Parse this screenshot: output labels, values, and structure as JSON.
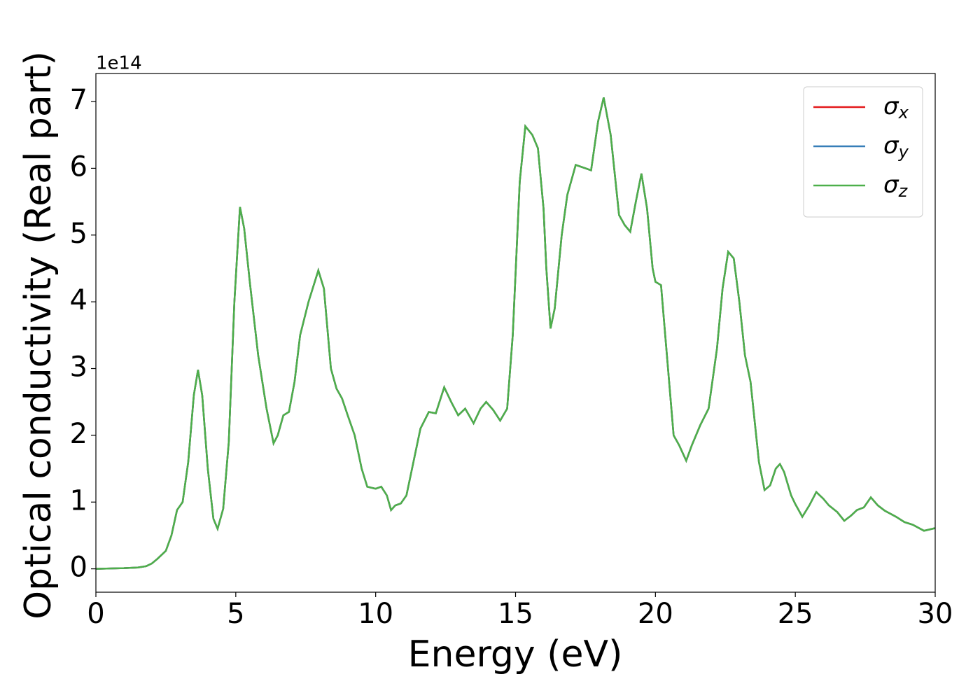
{
  "chart_data": {
    "type": "line",
    "xlabel": "Energy (eV)",
    "ylabel": "Optical conductivity (Real part)",
    "offset_label": "1e14",
    "x": [
      0,
      1,
      1.5,
      1.8,
      2.0,
      2.2,
      2.5,
      2.7,
      2.9,
      3.1,
      3.3,
      3.5,
      3.65,
      3.8,
      4.0,
      4.2,
      4.35,
      4.55,
      4.75,
      4.95,
      5.15,
      5.3,
      5.5,
      5.8,
      6.1,
      6.35,
      6.5,
      6.7,
      6.9,
      7.1,
      7.3,
      7.6,
      7.95,
      8.15,
      8.4,
      8.6,
      8.8,
      9.0,
      9.25,
      9.5,
      9.7,
      10.0,
      10.2,
      10.4,
      10.55,
      10.7,
      10.9,
      11.1,
      11.4,
      11.6,
      11.9,
      12.15,
      12.45,
      12.7,
      12.95,
      13.2,
      13.5,
      13.75,
      13.95,
      14.2,
      14.45,
      14.7,
      14.9,
      15.15,
      15.35,
      15.6,
      15.8,
      16.0,
      16.1,
      16.25,
      16.4,
      16.65,
      16.85,
      17.15,
      17.5,
      17.7,
      17.95,
      18.15,
      18.4,
      18.7,
      18.9,
      19.1,
      19.3,
      19.5,
      19.7,
      19.9,
      20.0,
      20.2,
      20.45,
      20.65,
      20.85,
      21.1,
      21.3,
      21.6,
      21.9,
      22.2,
      22.4,
      22.6,
      22.8,
      23.0,
      23.2,
      23.4,
      23.7,
      23.9,
      24.1,
      24.3,
      24.45,
      24.6,
      24.85,
      25.0,
      25.25,
      25.5,
      25.75,
      26.0,
      26.2,
      26.5,
      26.75,
      27.0,
      27.2,
      27.45,
      27.7,
      27.95,
      28.2,
      28.6,
      28.9,
      29.2,
      29.6,
      30
    ],
    "series": [
      {
        "name": "σx",
        "color": "#e41a1c",
        "values": [
          0,
          0.01,
          0.02,
          0.04,
          0.08,
          0.15,
          0.27,
          0.5,
          0.88,
          1.0,
          1.6,
          2.6,
          2.98,
          2.6,
          1.5,
          0.75,
          0.6,
          0.9,
          1.9,
          4.0,
          5.42,
          5.1,
          4.3,
          3.2,
          2.4,
          1.88,
          2.0,
          2.3,
          2.35,
          2.8,
          3.5,
          4.0,
          4.47,
          4.2,
          3.0,
          2.7,
          2.55,
          2.3,
          2.0,
          1.5,
          1.23,
          1.2,
          1.23,
          1.1,
          0.88,
          0.95,
          0.98,
          1.1,
          1.7,
          2.1,
          2.35,
          2.33,
          2.72,
          2.5,
          2.3,
          2.4,
          2.18,
          2.4,
          2.5,
          2.38,
          2.22,
          2.4,
          3.5,
          5.8,
          6.63,
          6.5,
          6.3,
          5.4,
          4.5,
          3.6,
          3.9,
          5.0,
          5.6,
          6.05,
          6.0,
          5.97,
          6.7,
          7.06,
          6.5,
          5.3,
          5.15,
          5.05,
          5.5,
          5.92,
          5.4,
          4.5,
          4.3,
          4.25,
          3.0,
          2.0,
          1.85,
          1.62,
          1.85,
          2.15,
          2.4,
          3.3,
          4.2,
          4.75,
          4.65,
          4.0,
          3.2,
          2.8,
          1.6,
          1.18,
          1.25,
          1.5,
          1.57,
          1.45,
          1.1,
          0.97,
          0.78,
          0.95,
          1.15,
          1.05,
          0.95,
          0.85,
          0.72,
          0.8,
          0.88,
          0.92,
          1.07,
          0.95,
          0.87,
          0.78,
          0.7,
          0.66,
          0.57,
          0.61
        ]
      },
      {
        "name": "σy",
        "color": "#377eb8",
        "values": [
          0,
          0.01,
          0.02,
          0.04,
          0.08,
          0.15,
          0.27,
          0.5,
          0.88,
          1.0,
          1.6,
          2.6,
          2.98,
          2.6,
          1.5,
          0.75,
          0.6,
          0.9,
          1.9,
          4.0,
          5.42,
          5.1,
          4.3,
          3.2,
          2.4,
          1.88,
          2.0,
          2.3,
          2.35,
          2.8,
          3.5,
          4.0,
          4.47,
          4.2,
          3.0,
          2.7,
          2.55,
          2.3,
          2.0,
          1.5,
          1.23,
          1.2,
          1.23,
          1.1,
          0.88,
          0.95,
          0.98,
          1.1,
          1.7,
          2.1,
          2.35,
          2.33,
          2.72,
          2.5,
          2.3,
          2.4,
          2.18,
          2.4,
          2.5,
          2.38,
          2.22,
          2.4,
          3.5,
          5.8,
          6.63,
          6.5,
          6.3,
          5.4,
          4.5,
          3.6,
          3.9,
          5.0,
          5.6,
          6.05,
          6.0,
          5.97,
          6.7,
          7.06,
          6.5,
          5.3,
          5.15,
          5.05,
          5.5,
          5.92,
          5.4,
          4.5,
          4.3,
          4.25,
          3.0,
          2.0,
          1.85,
          1.62,
          1.85,
          2.15,
          2.4,
          3.3,
          4.2,
          4.75,
          4.65,
          4.0,
          3.2,
          2.8,
          1.6,
          1.18,
          1.25,
          1.5,
          1.57,
          1.45,
          1.1,
          0.97,
          0.78,
          0.95,
          1.15,
          1.05,
          0.95,
          0.85,
          0.72,
          0.8,
          0.88,
          0.92,
          1.07,
          0.95,
          0.87,
          0.78,
          0.7,
          0.66,
          0.57,
          0.61
        ]
      },
      {
        "name": "σz",
        "color": "#4daf4a",
        "values": [
          0,
          0.01,
          0.02,
          0.04,
          0.08,
          0.15,
          0.27,
          0.5,
          0.88,
          1.0,
          1.6,
          2.6,
          2.98,
          2.6,
          1.5,
          0.75,
          0.6,
          0.9,
          1.9,
          4.0,
          5.42,
          5.1,
          4.3,
          3.2,
          2.4,
          1.88,
          2.0,
          2.3,
          2.35,
          2.8,
          3.5,
          4.0,
          4.47,
          4.2,
          3.0,
          2.7,
          2.55,
          2.3,
          2.0,
          1.5,
          1.23,
          1.2,
          1.23,
          1.1,
          0.88,
          0.95,
          0.98,
          1.1,
          1.7,
          2.1,
          2.35,
          2.33,
          2.72,
          2.5,
          2.3,
          2.4,
          2.18,
          2.4,
          2.5,
          2.38,
          2.22,
          2.4,
          3.5,
          5.8,
          6.63,
          6.5,
          6.3,
          5.4,
          4.5,
          3.6,
          3.9,
          5.0,
          5.6,
          6.05,
          6.0,
          5.97,
          6.7,
          7.06,
          6.5,
          5.3,
          5.15,
          5.05,
          5.5,
          5.92,
          5.4,
          4.5,
          4.3,
          4.25,
          3.0,
          2.0,
          1.85,
          1.62,
          1.85,
          2.15,
          2.4,
          3.3,
          4.2,
          4.75,
          4.65,
          4.0,
          3.2,
          2.8,
          1.6,
          1.18,
          1.25,
          1.5,
          1.57,
          1.45,
          1.1,
          0.97,
          0.78,
          0.95,
          1.15,
          1.05,
          0.95,
          0.85,
          0.72,
          0.8,
          0.88,
          0.92,
          1.07,
          0.95,
          0.87,
          0.78,
          0.7,
          0.66,
          0.57,
          0.61
        ]
      }
    ],
    "xlim": [
      0,
      30
    ],
    "xticks": [
      0,
      5,
      10,
      15,
      20,
      25,
      30
    ],
    "ylim": [
      -0.35,
      7.42
    ],
    "yticks": [
      0,
      1,
      2,
      3,
      4,
      5,
      6,
      7
    ],
    "grid": false,
    "legend": "upper right"
  }
}
